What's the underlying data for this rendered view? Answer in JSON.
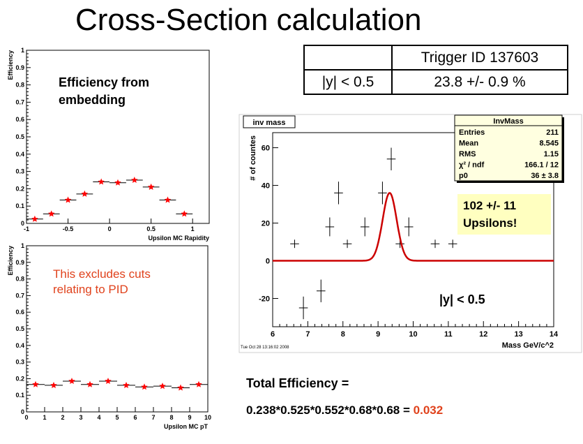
{
  "title": "Cross-Section calculation",
  "trigger_table": {
    "header": [
      "",
      "Trigger ID 137603"
    ],
    "row": [
      "|y| < 0.5",
      "23.8 +/- 0.9 %"
    ]
  },
  "annotations": {
    "embedding": "Efficiency from embedding",
    "pid_note": "This excludes cuts relating to PID",
    "upsilons": "102 +/- 11 Upsilons!",
    "rapidity_cut": "|y| < 0.5"
  },
  "total": {
    "label": "Total Efficiency =",
    "formula": "0.238*0.525*0.552*0.68*0.68 = ",
    "result": "0.032"
  },
  "colors": {
    "marker": "#ff0000",
    "fit": "#cc0000",
    "note": "#e0421c",
    "stats_bg": "#ffffe0"
  },
  "chart_data": [
    {
      "type": "scatter",
      "ylabel": "Efficiency",
      "xlabel": "Upsilon MC Rapidity",
      "xlim": [
        -1,
        1.2
      ],
      "ylim": [
        0,
        1
      ],
      "xticks": [
        "-1",
        "-0.5",
        "0",
        "0.5",
        "1"
      ],
      "yticks": [
        "0",
        "0.1",
        "0.2",
        "0.3",
        "0.4",
        "0.5",
        "0.6",
        "0.7",
        "0.8",
        "0.9",
        "1"
      ],
      "x": [
        -0.9,
        -0.7,
        -0.5,
        -0.3,
        -0.1,
        0.1,
        0.3,
        0.5,
        0.7,
        0.9
      ],
      "y": [
        0.025,
        0.055,
        0.135,
        0.17,
        0.24,
        0.235,
        0.25,
        0.21,
        0.135,
        0.055
      ],
      "xerr": 0.1
    },
    {
      "type": "scatter",
      "ylabel": "Efficiency",
      "xlabel": "Upsilon MC pT",
      "xlim": [
        0,
        10
      ],
      "ylim": [
        0,
        1
      ],
      "xticks": [
        "0",
        "1",
        "2",
        "3",
        "4",
        "5",
        "6",
        "7",
        "8",
        "9",
        "10"
      ],
      "yticks": [
        "0",
        "0.1",
        "0.2",
        "0.3",
        "0.4",
        "0.5",
        "0.6",
        "0.7",
        "0.8",
        "0.9",
        "1"
      ],
      "x": [
        0.5,
        1.5,
        2.5,
        3.5,
        4.5,
        5.5,
        6.5,
        7.5,
        8.5,
        9.5
      ],
      "y": [
        0.165,
        0.16,
        0.185,
        0.165,
        0.185,
        0.16,
        0.15,
        0.155,
        0.145,
        0.165
      ],
      "xerr": 0.5
    },
    {
      "type": "scatter",
      "title": "inv mass",
      "ylabel": "# of countes",
      "xlabel": "Mass GeV/c^2",
      "xlim": [
        6,
        14
      ],
      "ylim": [
        -35,
        68
      ],
      "xticks": [
        "6",
        "7",
        "8",
        "9",
        "10",
        "11",
        "12",
        "13",
        "14"
      ],
      "yticks": [
        "-20",
        "0",
        "20",
        "40",
        "60"
      ],
      "x": [
        6.625,
        6.875,
        7.375,
        7.625,
        7.875,
        8.125,
        8.625,
        9.125,
        9.375,
        9.625,
        9.875,
        10.625,
        11.125
      ],
      "y": [
        9,
        -25,
        -16,
        18,
        36,
        9,
        18,
        36,
        54,
        9,
        18,
        9,
        9
      ],
      "yerr": [
        0,
        6,
        6,
        5,
        6,
        0,
        5,
        6,
        6,
        0,
        5,
        0,
        0
      ],
      "xerr": 0.125,
      "fit": {
        "type": "gaussian",
        "amplitude": 36,
        "mean": 9.33,
        "sigma": 0.2,
        "xrange": [
          6,
          14
        ]
      },
      "stats": {
        "title": "InvMass",
        "rows": [
          [
            "Entries",
            "211"
          ],
          [
            "Mean",
            "8.545"
          ],
          [
            "RMS",
            "1.15"
          ],
          [
            "χ² / ndf",
            "166.1 / 12"
          ],
          [
            "p0",
            "36 ± 3.8"
          ]
        ]
      },
      "timestamp": "Tue Oct 28 13:16:02 2008"
    }
  ]
}
